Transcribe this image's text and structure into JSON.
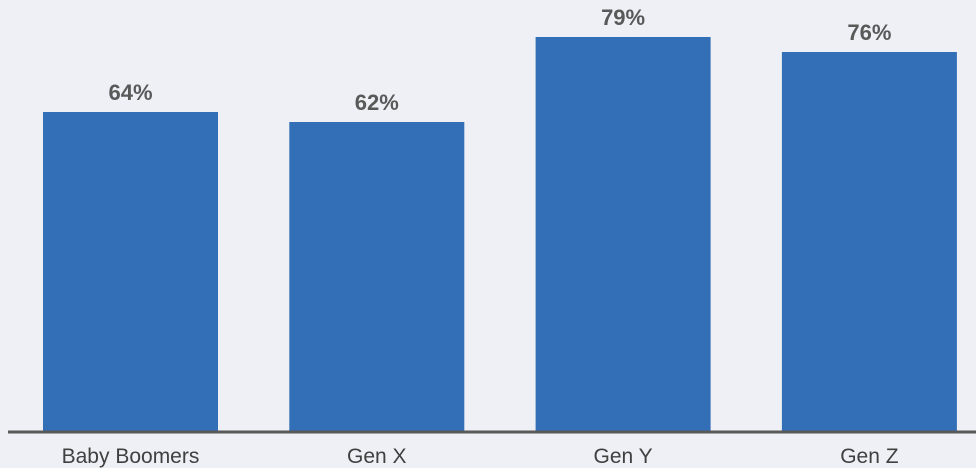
{
  "chart_data": {
    "type": "bar",
    "categories": [
      "Baby Boomers",
      "Gen X",
      "Gen Y",
      "Gen Z"
    ],
    "values": [
      64,
      62,
      79,
      76
    ],
    "value_labels": [
      "64%",
      "62%",
      "79%",
      "76%"
    ],
    "unit": "%",
    "title": "",
    "xlabel": "",
    "ylabel": "",
    "ylim": [
      0,
      100
    ],
    "grid": false,
    "legend": "none",
    "colors": {
      "bar": "#326fb6",
      "axis": "#595959",
      "value_text": "#595959",
      "category_text": "#404040",
      "background": "#eef0f5"
    }
  }
}
